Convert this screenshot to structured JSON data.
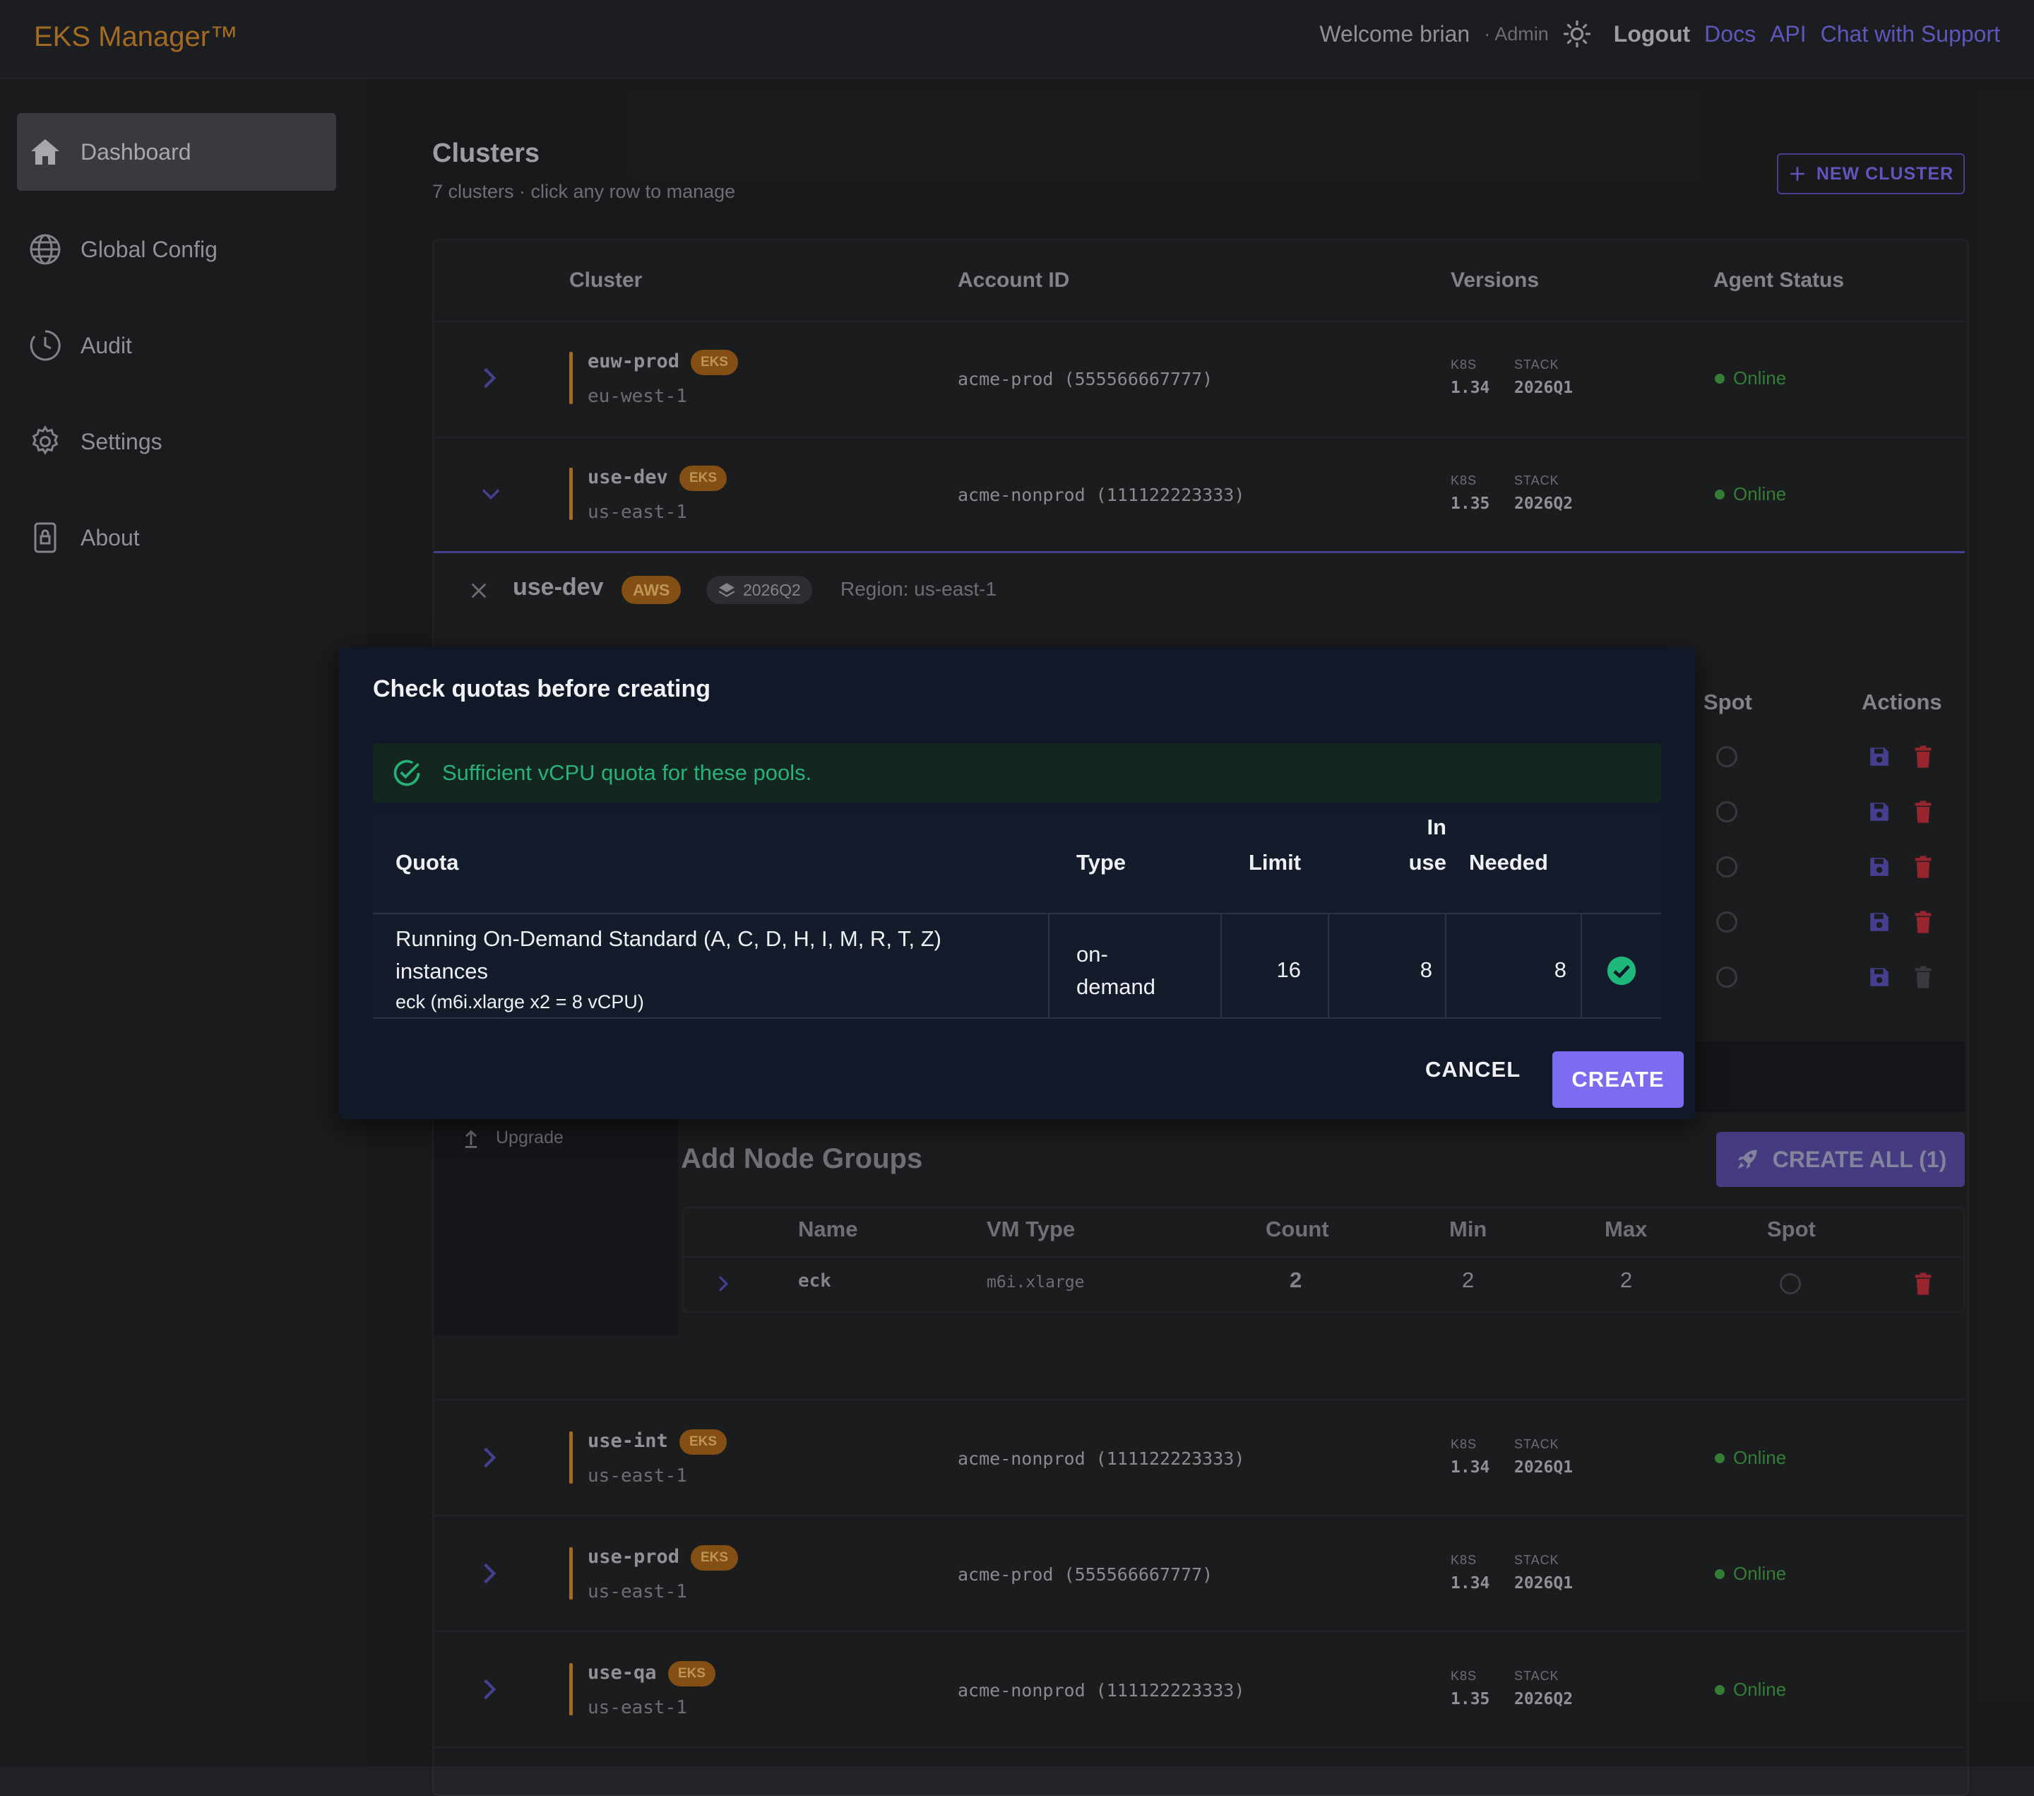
{
  "app": {
    "brand": "EKS Manager™"
  },
  "header": {
    "welcome": "Welcome brian",
    "role": "· Admin",
    "logout": "Logout",
    "links": [
      "Docs",
      "API",
      "Chat with Support"
    ]
  },
  "sidebar": {
    "items": [
      {
        "label": "Dashboard",
        "icon": "home-icon",
        "active": true
      },
      {
        "label": "Global Config",
        "icon": "globe-icon"
      },
      {
        "label": "Audit",
        "icon": "clock-icon"
      },
      {
        "label": "Settings",
        "icon": "gear-icon"
      },
      {
        "label": "About",
        "icon": "lock-icon"
      }
    ]
  },
  "clusters": {
    "title": "Clusters",
    "subtitle": "7 clusters · click any row to manage",
    "new_button": "NEW CLUSTER",
    "columns": [
      "Cluster",
      "Account ID",
      "Versions",
      "Agent Status"
    ],
    "version_labels": {
      "k8s": "K8S",
      "stack": "STACK"
    },
    "rows": [
      {
        "name": "euw-prod",
        "badge": "EKS",
        "region": "eu-west-1",
        "account": "acme-prod (555566667777)",
        "k8s": "1.34",
        "stack": "2026Q1",
        "status": "Online"
      },
      {
        "name": "use-dev",
        "badge": "EKS",
        "region": "us-east-1",
        "account": "acme-nonprod (111122223333)",
        "k8s": "1.35",
        "stack": "2026Q2",
        "status": "Online"
      },
      {
        "name": "use-int",
        "badge": "EKS",
        "region": "us-east-1",
        "account": "acme-nonprod (111122223333)",
        "k8s": "1.34",
        "stack": "2026Q1",
        "status": "Online"
      },
      {
        "name": "use-prod",
        "badge": "EKS",
        "region": "us-east-1",
        "account": "acme-prod (555566667777)",
        "k8s": "1.34",
        "stack": "2026Q1",
        "status": "Online"
      },
      {
        "name": "use-qa",
        "badge": "EKS",
        "region": "us-east-1",
        "account": "acme-nonprod (111122223333)",
        "k8s": "1.35",
        "stack": "2026Q2",
        "status": "Online"
      }
    ]
  },
  "expanded": {
    "name": "use-dev",
    "provider": "AWS",
    "stack": "2026Q2",
    "region": "Region: us-east-1",
    "columns": {
      "spot": "Spot",
      "actions": "Actions"
    },
    "side_action": "Upgrade",
    "add_node_groups": {
      "title": "Add Node Groups",
      "create_all": "CREATE ALL (1)",
      "columns": [
        "Name",
        "VM Type",
        "Count",
        "Min",
        "Max",
        "Spot"
      ],
      "rows": [
        {
          "name": "eck",
          "vm_type": "m6i.xlarge",
          "count": "2",
          "min": "2",
          "max": "2"
        }
      ]
    }
  },
  "dialog": {
    "title": "Check quotas before creating",
    "alert": "Sufficient vCPU quota for these pools.",
    "columns": {
      "quota": "Quota",
      "type": "Type",
      "limit": "Limit",
      "in_use_1": "In",
      "in_use_2": "use",
      "needed": "Needed"
    },
    "row": {
      "quota_line1": "Running On-Demand Standard (A, C, D, H, I, M, R, T, Z)",
      "quota_line2": "instances",
      "detail": "eck (m6i.xlarge x2 = 8 vCPU)",
      "type_line1": "on-",
      "type_line2": "demand",
      "limit": "16",
      "in_use": "8",
      "needed": "8"
    },
    "cancel": "CANCEL",
    "create": "CREATE"
  }
}
